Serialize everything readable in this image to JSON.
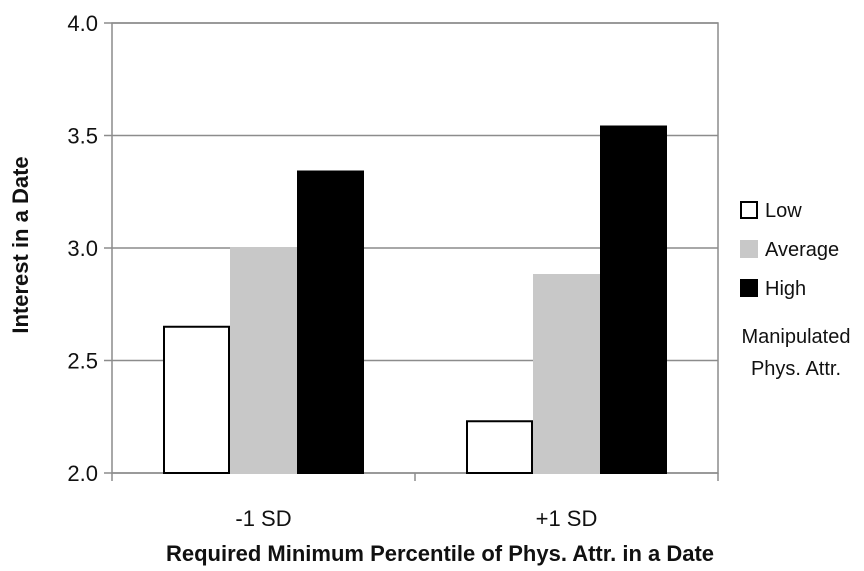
{
  "chart_data": {
    "type": "bar",
    "title": "",
    "xlabel": "Required Minimum Percentile of Phys. Attr. in a Date",
    "ylabel": "Interest in a Date",
    "ylim": [
      2.0,
      4.0
    ],
    "yticks": [
      "2.0",
      "2.5",
      "3.0",
      "3.5",
      "4.0"
    ],
    "categories": [
      "-1 SD",
      "+1 SD"
    ],
    "series": [
      {
        "name": "Low",
        "values": [
          2.65,
          2.23
        ],
        "color": "#ffffff"
      },
      {
        "name": "Average",
        "values": [
          3.0,
          2.88
        ],
        "color": "#c8c8c8"
      },
      {
        "name": "High",
        "values": [
          3.34,
          3.54
        ],
        "color": "#000000"
      }
    ],
    "legend_title": [
      "Manipulated",
      "Phys. Attr."
    ],
    "legend_position": "right",
    "grid": true
  }
}
